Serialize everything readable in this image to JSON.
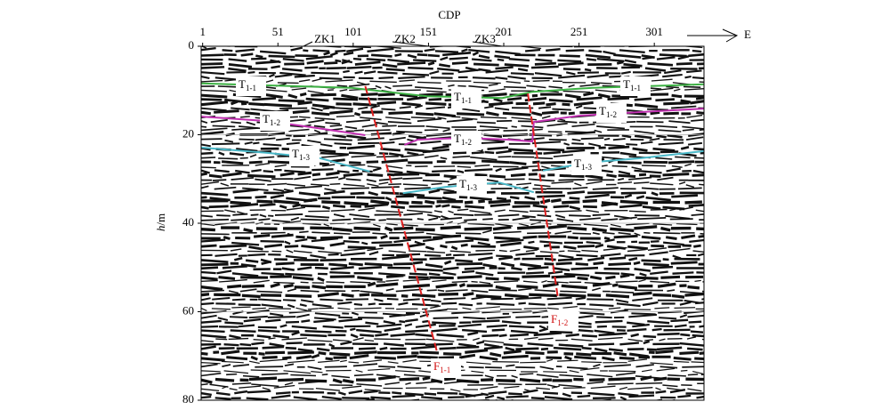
{
  "chart_data": {
    "type": "seismic",
    "x_label": "CDP",
    "y_label": "h/m",
    "direction": "E",
    "xlim": [
      0,
      334
    ],
    "ylim": [
      0,
      80
    ],
    "xticks": [
      1,
      51,
      101,
      151,
      201,
      251,
      301
    ],
    "yticks": [
      0,
      20,
      40,
      60,
      80
    ],
    "grid": true,
    "boreholes": [
      {
        "name": "ZK1",
        "x": 68
      },
      {
        "name": "ZK2",
        "x": 151
      },
      {
        "name": "ZK3",
        "x": 200
      }
    ],
    "series": [
      {
        "name": "T1-1",
        "color": "#3cb043",
        "x": [
          0,
          100,
          110,
          150,
          200,
          220,
          260,
          334
        ],
        "values": [
          8.4,
          9.4,
          9.8,
          11.3,
          11.7,
          10.3,
          9.4,
          8.6
        ]
      },
      {
        "name": "T1-2",
        "color": "#c030b0",
        "x": [
          0,
          44,
          73,
          109,
          112,
          135,
          144,
          174,
          204,
          220,
          221,
          251,
          280,
          334
        ],
        "values": [
          15.9,
          16.9,
          18.3,
          20.1,
          null,
          22.3,
          21.1,
          20.7,
          21.1,
          21.5,
          17.1,
          15.7,
          15.1,
          14.1
        ]
      },
      {
        "name": "T1-3",
        "color": "#4ab8c8",
        "x": [
          0,
          44,
          79,
          112,
          120,
          134,
          162,
          198,
          221,
          224,
          227,
          257,
          292,
          334
        ],
        "values": [
          22.9,
          24.1,
          25.3,
          28.3,
          null,
          33.2,
          31.8,
          30.8,
          33.0,
          null,
          28.1,
          26.3,
          25.3,
          23.7
        ]
      },
      {
        "name": "F1-1",
        "color": "#e02020",
        "x": [
          109,
          157
        ],
        "values": [
          9.0,
          69.5
        ]
      },
      {
        "name": "F1-2",
        "color": "#e02020",
        "x": [
          217,
          237
        ],
        "values": [
          10.7,
          56.9
        ]
      }
    ]
  }
}
